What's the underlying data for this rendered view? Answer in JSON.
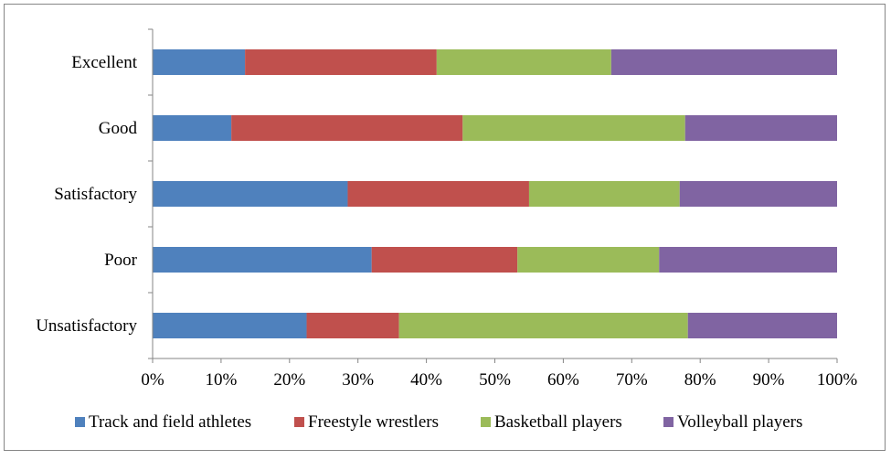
{
  "chart_data": {
    "type": "bar",
    "orientation": "horizontal",
    "stacked": "percent",
    "categories": [
      "Excellent",
      "Good",
      "Satisfactory",
      "Poor",
      "Unsatisfactory"
    ],
    "series": [
      {
        "name": "Track and field athletes",
        "color": "#4F81BD",
        "values": [
          13.5,
          11.5,
          28.5,
          32.0,
          22.5
        ]
      },
      {
        "name": "Freestyle wrestlers",
        "color": "#C0504D",
        "values": [
          28.0,
          33.8,
          26.5,
          21.3,
          13.5
        ]
      },
      {
        "name": "Basketball players",
        "color": "#9BBB59",
        "values": [
          25.5,
          32.5,
          22.0,
          20.7,
          42.2
        ]
      },
      {
        "name": "Volleyball players",
        "color": "#8064A2",
        "values": [
          33.0,
          22.2,
          23.0,
          26.0,
          21.8
        ]
      }
    ],
    "xlim": [
      0,
      100
    ],
    "x_ticks": [
      "0%",
      "10%",
      "20%",
      "30%",
      "40%",
      "50%",
      "60%",
      "70%",
      "80%",
      "90%",
      "100%"
    ],
    "title": "",
    "xlabel": "",
    "ylabel": "",
    "grid": false,
    "legend_position": "bottom"
  }
}
